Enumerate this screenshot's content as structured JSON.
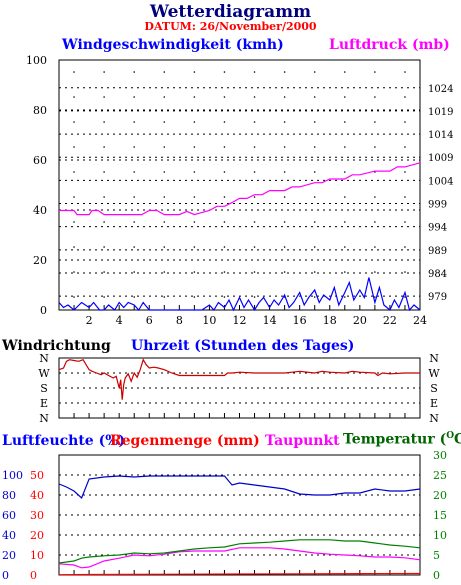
{
  "header": {
    "title": "Wetterdiagramm",
    "date_line": "DATUM: 26/November/2000"
  },
  "colors": {
    "wind": "#0000ff",
    "pressure": "#ff00ff",
    "direction": "#cc0000",
    "humidity": "#0000cc",
    "rain": "#ff0000",
    "dewpoint": "#ff00ff",
    "temperature": "#008000",
    "grid": "#000000"
  },
  "chart_data": [
    {
      "type": "line",
      "title": "",
      "left_label": "Windgeschwindigkeit (kmh)",
      "right_label": "Luftdruck (mb)",
      "xlabel": "",
      "xlim": [
        0,
        24
      ],
      "x_ticks": [
        "2",
        "4",
        "6",
        "8",
        "10",
        "12",
        "14",
        "16",
        "18",
        "20",
        "22",
        "24"
      ],
      "left_ylim": [
        0,
        100
      ],
      "left_ticks": [
        "0",
        "20",
        "40",
        "60",
        "80",
        "100"
      ],
      "right_ylim": [
        976,
        1030
      ],
      "right_ticks": [
        "979",
        "984",
        "989",
        "994",
        "999",
        "1004",
        "1009",
        "1014",
        "1019",
        "1024"
      ],
      "grid": true,
      "series": [
        {
          "name": "Windgeschwindigkeit (kmh)",
          "axis": "left",
          "x": [
            0,
            0.3,
            0.6,
            1.0,
            1.5,
            2.0,
            2.3,
            2.7,
            3.0,
            3.3,
            3.7,
            4.0,
            4.3,
            4.6,
            5.0,
            5.3,
            5.6,
            6.0,
            6.5,
            7.0,
            7.5,
            8.0,
            8.5,
            9.0,
            9.5,
            10.0,
            10.3,
            10.6,
            11.0,
            11.3,
            11.6,
            12.0,
            12.3,
            12.6,
            13.0,
            13.3,
            13.6,
            14.0,
            14.3,
            14.6,
            15.0,
            15.3,
            15.6,
            16.0,
            16.3,
            16.6,
            17.0,
            17.3,
            17.6,
            18.0,
            18.3,
            18.6,
            19.0,
            19.3,
            19.6,
            20.0,
            20.3,
            20.6,
            21.0,
            21.3,
            21.6,
            22.0,
            22.3,
            22.6,
            23.0,
            23.3,
            23.6,
            24.0
          ],
          "y": [
            3,
            1,
            2,
            0,
            3,
            1,
            3,
            0,
            0,
            2,
            0,
            3,
            1,
            3,
            2,
            0,
            3,
            0,
            0,
            0,
            0,
            0,
            0,
            0,
            0,
            2,
            0,
            3,
            1,
            4,
            0,
            5,
            1,
            4,
            0,
            3,
            5,
            1,
            4,
            2,
            6,
            1,
            3,
            7,
            2,
            5,
            8,
            3,
            6,
            4,
            9,
            2,
            7,
            11,
            4,
            8,
            5,
            13,
            3,
            9,
            2,
            0,
            4,
            1,
            7,
            0,
            2,
            0
          ]
        },
        {
          "name": "Luftdruck (mb)",
          "axis": "right",
          "x": [
            0,
            1.0,
            1.2,
            2.0,
            2.2,
            2.6,
            3.0,
            5.5,
            6.0,
            6.5,
            7.0,
            8.0,
            8.5,
            9.0,
            10.0,
            10.5,
            11.0,
            11.5,
            12.0,
            12.5,
            13.0,
            13.5,
            14.0,
            15.0,
            15.5,
            16.0,
            17.0,
            17.5,
            18.0,
            19.0,
            19.5,
            20.0,
            21.0,
            22.0,
            22.5,
            23.0,
            24.0
          ],
          "y": [
            997.5,
            997.5,
            996.6,
            996.6,
            997.5,
            997.5,
            996.6,
            996.6,
            997.5,
            997.5,
            996.6,
            996.6,
            997.3,
            996.6,
            997.5,
            998.4,
            998.4,
            999.2,
            1000.1,
            1000.1,
            1000.9,
            1000.9,
            1001.8,
            1001.8,
            1002.6,
            1002.6,
            1003.5,
            1003.5,
            1004.3,
            1004.3,
            1005.2,
            1005.2,
            1006.0,
            1006.0,
            1006.9,
            1006.9,
            1007.8
          ]
        }
      ]
    },
    {
      "type": "line",
      "title": "",
      "left_label": "Windrichtung",
      "xlabel": "Uhrzeit (Stunden des Tages)",
      "xlim": [
        0,
        24
      ],
      "y_categories": [
        "N",
        "W",
        "S",
        "E",
        "N"
      ],
      "y_values_deg": [
        360,
        270,
        180,
        90,
        0
      ],
      "grid": true,
      "series": [
        {
          "name": "Windrichtung",
          "x": [
            0,
            0.3,
            0.5,
            0.7,
            1.0,
            1.3,
            1.6,
            2.0,
            2.2,
            2.5,
            2.8,
            3.0,
            3.3,
            3.6,
            3.8,
            4.0,
            4.1,
            4.2,
            4.3,
            4.4,
            4.6,
            4.8,
            5.0,
            5.2,
            5.4,
            5.6,
            5.8,
            6.0,
            6.3,
            6.6,
            7.0,
            7.5,
            8.0,
            9.0,
            10.0,
            11.0,
            11.2,
            11.5,
            12.0,
            13.0,
            14.0,
            15.0,
            15.5,
            16.0,
            17.0,
            17.5,
            18.0,
            19.0,
            19.5,
            20.0,
            21.0,
            21.2,
            21.5,
            22.0,
            23.0,
            24.0
          ],
          "y": [
            290,
            300,
            340,
            350,
            345,
            340,
            350,
            290,
            280,
            270,
            260,
            270,
            255,
            240,
            250,
            180,
            230,
            110,
            200,
            240,
            265,
            220,
            270,
            245,
            290,
            350,
            320,
            300,
            305,
            300,
            290,
            270,
            255,
            255,
            255,
            255,
            270,
            270,
            275,
            270,
            270,
            270,
            275,
            280,
            270,
            280,
            275,
            270,
            280,
            275,
            270,
            255,
            270,
            265,
            270,
            270
          ]
        }
      ]
    },
    {
      "type": "line",
      "title": "",
      "xlim": [
        0,
        24
      ],
      "left_ylim": [
        0,
        120
      ],
      "left_ticks_outer": [
        "0",
        "20",
        "40",
        "60",
        "80",
        "100"
      ],
      "left_ticks_inner": [
        "0",
        "10",
        "20",
        "30",
        "40",
        "50"
      ],
      "right_ylim": [
        0,
        30
      ],
      "right_ticks": [
        "0",
        "5",
        "10",
        "15",
        "20",
        "25",
        "30"
      ],
      "grid": true,
      "series": [
        {
          "name": "Luftfeuchte (%)",
          "axis": "outer_left",
          "x": [
            0,
            0.5,
            1.0,
            1.5,
            2.0,
            3.0,
            4.0,
            5.0,
            6.0,
            7.0,
            8.0,
            9.0,
            10.0,
            11.0,
            11.5,
            12.0,
            13.0,
            14.0,
            15.0,
            16.0,
            17.0,
            18.0,
            19.0,
            20.0,
            21.0,
            22.0,
            23.0,
            24.0
          ],
          "y": [
            91,
            88,
            84,
            77,
            96,
            98,
            99,
            98,
            99,
            99,
            99,
            99,
            99,
            99,
            90,
            92,
            90,
            88,
            86,
            81,
            80,
            80,
            82,
            82,
            86,
            84,
            84,
            86
          ]
        },
        {
          "name": "Regenmenge (mm)",
          "axis": "inner_left",
          "x": [
            0,
            2.0,
            8.0,
            12.0,
            16.0,
            20.0,
            24.0
          ],
          "y": [
            0.3,
            0.5,
            0.8,
            1.0,
            1.2,
            1.4,
            1.5
          ]
        },
        {
          "name": "Taupunkt",
          "axis": "right",
          "x": [
            0,
            1.0,
            1.5,
            2.0,
            3.0,
            4.0,
            5.0,
            6.0,
            7.0,
            8.0,
            9.0,
            10.0,
            11.0,
            12.0,
            13.0,
            14.0,
            15.0,
            16.0,
            17.0,
            18.0,
            19.0,
            20.0,
            21.0,
            22.0,
            23.0,
            24.0
          ],
          "y": [
            2.8,
            2.5,
            1.8,
            2.0,
            3.5,
            4.2,
            5.0,
            4.8,
            5.2,
            5.8,
            6.0,
            6.0,
            6.0,
            6.8,
            6.8,
            6.8,
            6.5,
            6.0,
            5.5,
            5.2,
            5.0,
            4.8,
            4.5,
            4.5,
            4.3,
            3.8
          ]
        },
        {
          "name": "Temperatur (°C)",
          "axis": "right",
          "x": [
            0,
            1.0,
            1.5,
            2.0,
            3.0,
            4.0,
            5.0,
            6.0,
            7.0,
            8.0,
            9.0,
            10.0,
            11.0,
            12.0,
            13.0,
            14.0,
            15.0,
            16.0,
            17.0,
            18.0,
            19.0,
            20.0,
            21.0,
            22.0,
            23.0,
            24.0
          ],
          "y": [
            3.0,
            3.5,
            4.2,
            4.5,
            4.8,
            5.0,
            5.5,
            5.3,
            5.5,
            6.0,
            6.5,
            6.8,
            7.0,
            7.8,
            8.0,
            8.2,
            8.5,
            8.8,
            8.8,
            8.8,
            8.5,
            8.5,
            8.0,
            7.5,
            7.2,
            6.8
          ]
        }
      ]
    }
  ],
  "labels": {
    "wind_title": "Windgeschwindigkeit (kmh)",
    "press_title": "Luftdruck (mb)",
    "dir_title": "Windrichtung",
    "time_title": "Uhrzeit (Stunden des Tages)",
    "hum_title": "Luftfeuchte (%)",
    "rain_title": "Regenmenge (mm)",
    "dew_title": "Taupunkt",
    "temp_title": "Temperatur (",
    "temp_unit": "O",
    "temp_suffix": "C)"
  }
}
